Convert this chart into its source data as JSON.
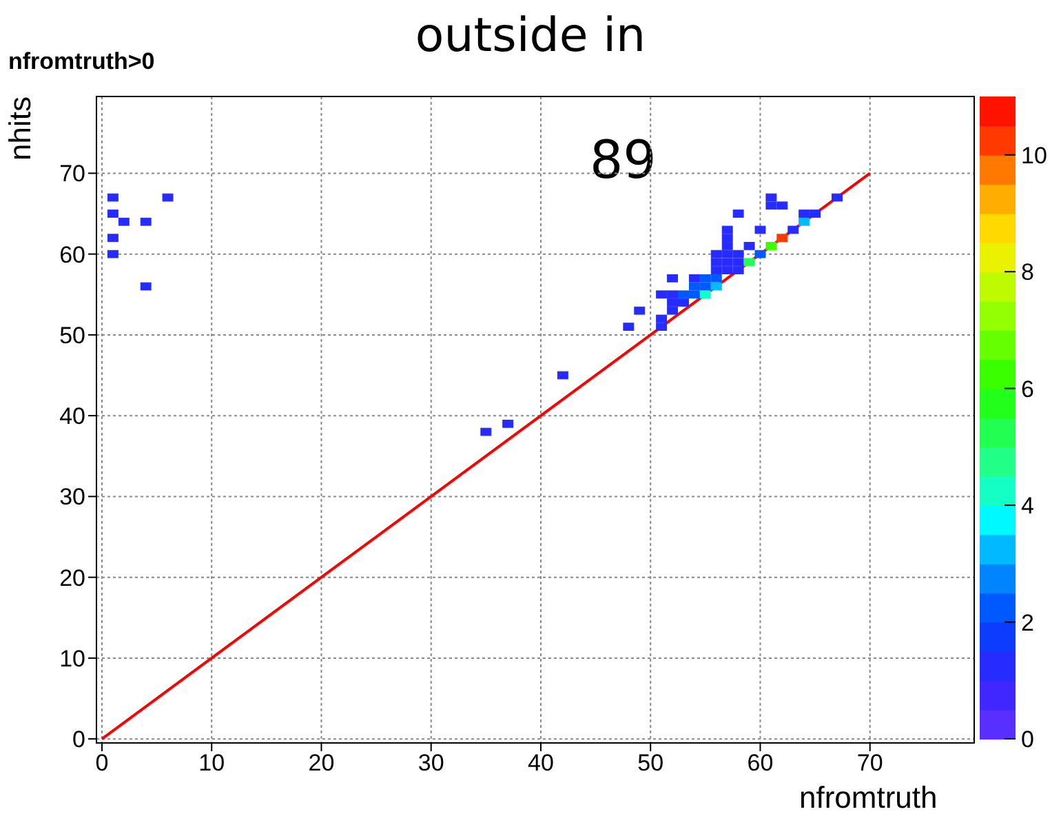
{
  "chart_data": {
    "type": "scatter",
    "title": "outside in",
    "xlabel": "nfromtruth",
    "ylabel": "nhits",
    "annotations": [
      "nfromtruth>0",
      "89"
    ],
    "xlim": [
      -0.5,
      79.5
    ],
    "ylim": [
      -0.5,
      79.5
    ],
    "xticks": [
      0,
      10,
      20,
      30,
      40,
      50,
      60,
      70
    ],
    "yticks": [
      0,
      10,
      20,
      30,
      40,
      50,
      60,
      70
    ],
    "grid": true,
    "marker": "square",
    "clim": [
      0,
      11
    ],
    "cticks": [
      0,
      2,
      4,
      6,
      8,
      10
    ],
    "series": [
      {
        "x": [
          1,
          1,
          1,
          1,
          2,
          4,
          4,
          6,
          35,
          37,
          42,
          48,
          49,
          51,
          51,
          52,
          51,
          52,
          53,
          54,
          55,
          52,
          53,
          52,
          54,
          55,
          56,
          55,
          56,
          54,
          56,
          57,
          58,
          56,
          57,
          58,
          56,
          57,
          58,
          57,
          57,
          57,
          59,
          58,
          59,
          60,
          61,
          62,
          60,
          63,
          64,
          64,
          65,
          61,
          62,
          61,
          67
        ],
        "values": [
          67,
          65,
          62,
          60,
          64,
          64,
          56,
          67,
          38,
          39,
          45,
          51,
          53,
          51,
          52,
          53,
          55,
          55,
          55,
          55,
          55,
          54,
          54,
          57,
          57,
          57,
          57,
          56,
          56,
          56,
          58,
          58,
          58,
          59,
          59,
          59,
          60,
          60,
          60,
          61,
          62,
          63,
          59,
          65,
          61,
          60,
          61,
          62,
          63,
          63,
          64,
          65,
          65,
          66,
          66,
          67,
          67
        ],
        "cvalues": [
          1,
          1,
          1,
          1,
          1,
          1,
          1,
          1,
          1,
          1,
          1,
          1,
          1,
          1,
          1,
          1,
          1,
          1,
          2,
          2,
          4,
          1,
          1,
          1,
          1,
          2,
          2,
          2,
          3,
          2,
          1,
          1,
          1,
          1,
          1,
          1,
          1,
          1,
          1,
          1,
          1,
          1,
          5,
          1,
          1,
          2,
          6,
          10,
          1,
          1,
          3,
          1,
          1,
          1,
          1,
          1,
          1
        ],
        "colors": [
          "#262bff",
          "#262bff",
          "#262bff",
          "#262bff",
          "#262bff",
          "#262bff",
          "#262bff",
          "#262bff",
          "#262bff",
          "#262bff",
          "#262bff",
          "#262bff",
          "#262bff",
          "#262bff",
          "#262bff",
          "#262bff",
          "#262bff",
          "#262bff",
          "#0059ff",
          "#0059ff",
          "#13ffc6",
          "#262bff",
          "#262bff",
          "#262bff",
          "#262bff",
          "#0059ff",
          "#0059ff",
          "#0059ff",
          "#00b9ff",
          "#0059ff",
          "#262bff",
          "#262bff",
          "#262bff",
          "#262bff",
          "#262bff",
          "#262bff",
          "#262bff",
          "#262bff",
          "#262bff",
          "#262bff",
          "#262bff",
          "#262bff",
          "#22ff52",
          "#262bff",
          "#262bff",
          "#0059ff",
          "#39ff00",
          "#ff3900",
          "#262bff",
          "#262bff",
          "#00b9ff",
          "#262bff",
          "#262bff",
          "#262bff",
          "#262bff",
          "#262bff",
          "#262bff"
        ]
      },
      {
        "type": "line",
        "x": [
          0,
          70
        ],
        "values": [
          0,
          70
        ],
        "color": "#ff0000",
        "marker": "none"
      }
    ]
  }
}
